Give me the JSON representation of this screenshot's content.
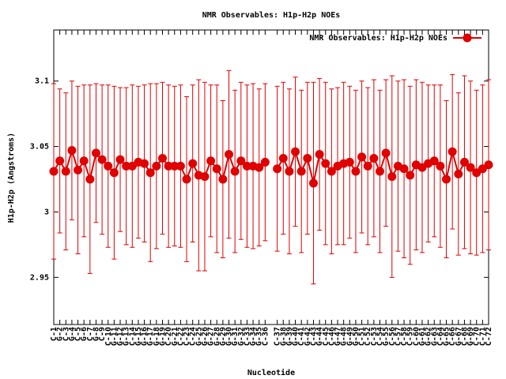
{
  "chart_data": {
    "type": "line",
    "title": "NMR Observables: H1p-H2p NOEs",
    "xlabel": "Nucleotide",
    "ylabel": "H1p-H2p (Angstroms)",
    "categories": [
      "C-1",
      "G-2",
      "C-3",
      "G-4",
      "C-5",
      "G-6",
      "C-7",
      "G-8",
      "C-9",
      "C-10",
      "G-11",
      "G-12",
      "G-13",
      "C-14",
      "G-15",
      "G-16",
      "G-17",
      "G-18",
      "G-19",
      "C-20",
      "G-21",
      "C-22",
      "C-23",
      "C-24",
      "G-25",
      "G-26",
      "G-27",
      "G-28",
      "G-29",
      "G-30",
      "G-31",
      "G-32",
      "C-33",
      "G-34",
      "G-35",
      "C-36",
      null,
      "C-37",
      "G-38",
      "G-39",
      "G-40",
      "C-41",
      "G-42",
      "C-43",
      "G-44",
      "C-45",
      "C-46",
      "G-47",
      "G-48",
      "G-49",
      "G-50",
      "C-51",
      "C-52",
      "C-53",
      "C-54",
      "G-55",
      "C-56",
      "C-57",
      "C-58",
      "C-59",
      "C-60",
      "G-61",
      "G-62",
      "G-63",
      "C-64",
      "G-65",
      "C-66",
      "G-67",
      "C-68",
      "G-69",
      "C-70",
      "C-71",
      "C-72"
    ],
    "series": [
      {
        "name": "NMR Observables: H1p-H2p NOEs",
        "color": "#e00000",
        "values": [
          3.031,
          3.039,
          3.031,
          3.047,
          3.032,
          3.039,
          3.025,
          3.045,
          3.04,
          3.035,
          3.03,
          3.04,
          3.035,
          3.035,
          3.038,
          3.037,
          3.03,
          3.035,
          3.041,
          3.035,
          3.035,
          3.035,
          3.025,
          3.037,
          3.028,
          3.027,
          3.039,
          3.033,
          3.025,
          3.044,
          3.031,
          3.039,
          3.035,
          3.035,
          3.034,
          3.038,
          null,
          3.033,
          3.041,
          3.031,
          3.046,
          3.031,
          3.041,
          3.022,
          3.044,
          3.037,
          3.031,
          3.035,
          3.037,
          3.038,
          3.031,
          3.042,
          3.035,
          3.041,
          3.031,
          3.045,
          3.027,
          3.035,
          3.033,
          3.028,
          3.036,
          3.034,
          3.037,
          3.039,
          3.035,
          3.025,
          3.046,
          3.029,
          3.038,
          3.034,
          3.03,
          3.033,
          3.036
        ],
        "errors": [
          0.067,
          0.055,
          0.06,
          0.053,
          0.064,
          0.058,
          0.072,
          0.053,
          0.057,
          0.062,
          0.066,
          0.055,
          0.06,
          0.062,
          0.058,
          0.06,
          0.068,
          0.063,
          0.058,
          0.062,
          0.061,
          0.062,
          0.063,
          0.06,
          0.073,
          0.072,
          0.058,
          0.064,
          0.06,
          0.064,
          0.062,
          0.06,
          0.062,
          0.063,
          0.06,
          0.06,
          null,
          0.063,
          0.058,
          0.063,
          0.057,
          0.062,
          0.058,
          0.077,
          0.058,
          0.062,
          0.063,
          0.06,
          0.062,
          0.058,
          0.062,
          0.058,
          0.06,
          0.06,
          0.062,
          0.056,
          0.077,
          0.065,
          0.068,
          0.068,
          0.065,
          0.065,
          0.06,
          0.058,
          0.062,
          0.06,
          0.059,
          0.062,
          0.066,
          0.066,
          0.063,
          0.064,
          0.065
        ]
      }
    ],
    "ylim": [
      2.914,
      3.139
    ],
    "yticks": [
      2.95,
      3,
      3.05,
      3.1
    ],
    "grid": false,
    "legend": "upper right"
  }
}
